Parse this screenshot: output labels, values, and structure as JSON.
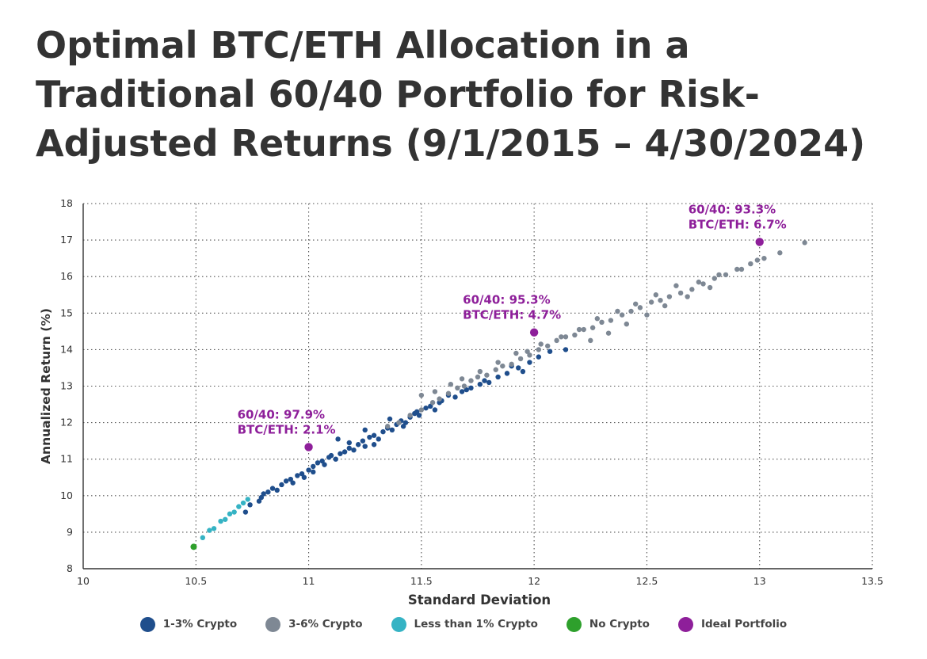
{
  "title": "Optimal BTC/ETH Allocation in a Traditional 60/40 Portfolio for Risk-Adjusted Returns (9/1/2015 – 4/30/2024)",
  "chart_data": {
    "type": "scatter",
    "xlabel": "Standard Deviation",
    "ylabel": "Annualized Return (%)",
    "xlim": [
      10,
      13.5
    ],
    "ylim": [
      8,
      18
    ],
    "xticks": [
      "10",
      "10.5",
      "11",
      "11.5",
      "12",
      "12.5",
      "13",
      "13.5"
    ],
    "yticks": [
      "8",
      "9",
      "10",
      "11",
      "12",
      "13",
      "14",
      "15",
      "16",
      "17",
      "18"
    ],
    "grid": true,
    "legend_placement": "bottom-center",
    "colors": {
      "crypto_1_3": "#1f4e8c",
      "crypto_3_6": "#7e8894",
      "crypto_lt1": "#35b3c4",
      "no_crypto": "#2ea02c",
      "ideal": "#8e1f9a",
      "annotation": "#8e1f9a"
    },
    "series": [
      {
        "name": "1-3% Crypto",
        "color_key": "crypto_1_3",
        "points": [
          [
            10.72,
            9.55
          ],
          [
            10.74,
            9.75
          ],
          [
            10.78,
            9.85
          ],
          [
            10.79,
            9.95
          ],
          [
            10.8,
            10.05
          ],
          [
            10.82,
            10.1
          ],
          [
            10.84,
            10.2
          ],
          [
            10.86,
            10.15
          ],
          [
            10.88,
            10.3
          ],
          [
            10.9,
            10.4
          ],
          [
            10.92,
            10.45
          ],
          [
            10.93,
            10.35
          ],
          [
            10.95,
            10.55
          ],
          [
            10.97,
            10.6
          ],
          [
            10.98,
            10.5
          ],
          [
            11.0,
            10.7
          ],
          [
            11.02,
            10.8
          ],
          [
            11.02,
            10.65
          ],
          [
            11.04,
            10.9
          ],
          [
            11.06,
            10.95
          ],
          [
            11.07,
            10.85
          ],
          [
            11.09,
            11.05
          ],
          [
            11.1,
            11.1
          ],
          [
            11.12,
            11.0
          ],
          [
            11.14,
            11.15
          ],
          [
            11.16,
            11.2
          ],
          [
            11.18,
            11.3
          ],
          [
            11.2,
            11.25
          ],
          [
            11.22,
            11.4
          ],
          [
            11.24,
            11.5
          ],
          [
            11.25,
            11.35
          ],
          [
            11.27,
            11.6
          ],
          [
            11.29,
            11.65
          ],
          [
            11.31,
            11.55
          ],
          [
            11.33,
            11.75
          ],
          [
            11.35,
            11.85
          ],
          [
            11.37,
            11.8
          ],
          [
            11.39,
            11.95
          ],
          [
            11.41,
            12.05
          ],
          [
            11.43,
            12.0
          ],
          [
            11.45,
            12.15
          ],
          [
            11.47,
            12.25
          ],
          [
            11.49,
            12.2
          ],
          [
            11.52,
            12.4
          ],
          [
            11.54,
            12.45
          ],
          [
            11.56,
            12.35
          ],
          [
            11.59,
            12.6
          ],
          [
            11.62,
            12.75
          ],
          [
            11.65,
            12.7
          ],
          [
            11.68,
            12.85
          ],
          [
            11.72,
            12.95
          ],
          [
            11.76,
            13.05
          ],
          [
            11.8,
            13.1
          ],
          [
            11.84,
            13.25
          ],
          [
            11.88,
            13.35
          ],
          [
            11.93,
            13.5
          ],
          [
            11.98,
            13.65
          ],
          [
            12.02,
            13.8
          ],
          [
            12.07,
            13.95
          ],
          [
            12.14,
            14.0
          ],
          [
            11.13,
            11.55
          ],
          [
            11.18,
            11.45
          ],
          [
            11.25,
            11.8
          ],
          [
            11.29,
            11.4
          ],
          [
            11.36,
            12.1
          ],
          [
            11.42,
            11.9
          ],
          [
            11.48,
            12.3
          ],
          [
            11.58,
            12.55
          ],
          [
            11.7,
            12.9
          ],
          [
            11.78,
            13.15
          ],
          [
            11.9,
            13.55
          ],
          [
            11.95,
            13.4
          ]
        ]
      },
      {
        "name": "3-6% Crypto",
        "color_key": "crypto_3_6",
        "points": [
          [
            11.35,
            11.9
          ],
          [
            11.4,
            12.0
          ],
          [
            11.45,
            12.2
          ],
          [
            11.5,
            12.35
          ],
          [
            11.55,
            12.55
          ],
          [
            11.58,
            12.65
          ],
          [
            11.62,
            12.8
          ],
          [
            11.66,
            12.95
          ],
          [
            11.69,
            13.0
          ],
          [
            11.72,
            13.15
          ],
          [
            11.75,
            13.25
          ],
          [
            11.79,
            13.3
          ],
          [
            11.83,
            13.45
          ],
          [
            11.86,
            13.55
          ],
          [
            11.9,
            13.6
          ],
          [
            11.94,
            13.75
          ],
          [
            11.98,
            13.85
          ],
          [
            12.02,
            14.0
          ],
          [
            12.06,
            14.1
          ],
          [
            12.1,
            14.25
          ],
          [
            12.14,
            14.35
          ],
          [
            12.18,
            14.4
          ],
          [
            12.22,
            14.55
          ],
          [
            12.26,
            14.6
          ],
          [
            12.3,
            14.75
          ],
          [
            12.34,
            14.8
          ],
          [
            12.39,
            14.95
          ],
          [
            12.43,
            15.05
          ],
          [
            12.47,
            15.15
          ],
          [
            12.52,
            15.3
          ],
          [
            12.56,
            15.35
          ],
          [
            12.6,
            15.45
          ],
          [
            12.65,
            15.55
          ],
          [
            12.7,
            15.65
          ],
          [
            12.75,
            15.8
          ],
          [
            12.8,
            15.95
          ],
          [
            12.85,
            16.05
          ],
          [
            12.9,
            16.2
          ],
          [
            12.96,
            16.35
          ],
          [
            13.02,
            16.5
          ],
          [
            13.09,
            16.65
          ],
          [
            13.2,
            16.93
          ],
          [
            11.5,
            12.75
          ],
          [
            11.56,
            12.85
          ],
          [
            11.63,
            13.05
          ],
          [
            11.68,
            13.2
          ],
          [
            11.76,
            13.4
          ],
          [
            11.84,
            13.65
          ],
          [
            11.92,
            13.9
          ],
          [
            11.97,
            13.95
          ],
          [
            12.03,
            14.15
          ],
          [
            12.12,
            14.35
          ],
          [
            12.2,
            14.55
          ],
          [
            12.28,
            14.85
          ],
          [
            12.37,
            15.05
          ],
          [
            12.45,
            15.25
          ],
          [
            12.54,
            15.5
          ],
          [
            12.63,
            15.75
          ],
          [
            12.73,
            15.85
          ],
          [
            12.82,
            16.05
          ],
          [
            12.92,
            16.2
          ],
          [
            12.99,
            16.45
          ],
          [
            12.25,
            14.25
          ],
          [
            12.33,
            14.45
          ],
          [
            12.41,
            14.7
          ],
          [
            12.5,
            14.95
          ],
          [
            12.58,
            15.2
          ],
          [
            12.68,
            15.45
          ],
          [
            12.78,
            15.7
          ]
        ]
      },
      {
        "name": "Less than 1% Crypto",
        "color_key": "crypto_lt1",
        "points": [
          [
            10.53,
            8.85
          ],
          [
            10.56,
            9.05
          ],
          [
            10.58,
            9.1
          ],
          [
            10.61,
            9.3
          ],
          [
            10.63,
            9.35
          ],
          [
            10.65,
            9.5
          ],
          [
            10.67,
            9.55
          ],
          [
            10.69,
            9.7
          ],
          [
            10.71,
            9.8
          ],
          [
            10.73,
            9.9
          ]
        ]
      },
      {
        "name": "No Crypto",
        "color_key": "no_crypto",
        "points": [
          [
            10.49,
            8.6
          ]
        ]
      },
      {
        "name": "Ideal Portfolio",
        "color_key": "ideal",
        "points": [
          [
            11.0,
            11.33
          ],
          [
            12.0,
            14.47
          ],
          [
            13.0,
            16.95
          ]
        ]
      }
    ],
    "annotations": [
      {
        "line1": "60/40: 97.9%",
        "line2": "BTC/ETH: 2.1%",
        "x": 11.0,
        "y": 11.33
      },
      {
        "line1": "60/40: 95.3%",
        "line2": "BTC/ETH: 4.7%",
        "x": 12.0,
        "y": 14.47
      },
      {
        "line1": "60/40: 93.3%",
        "line2": "BTC/ETH: 6.7%",
        "x": 13.0,
        "y": 16.95
      }
    ]
  },
  "legend": [
    {
      "label": "1-3% Crypto",
      "color": "#1f4e8c"
    },
    {
      "label": "3-6% Crypto",
      "color": "#7e8894"
    },
    {
      "label": "Less than 1% Crypto",
      "color": "#35b3c4"
    },
    {
      "label": "No Crypto",
      "color": "#2ea02c"
    },
    {
      "label": "Ideal Portfolio",
      "color": "#8e1f9a"
    }
  ]
}
